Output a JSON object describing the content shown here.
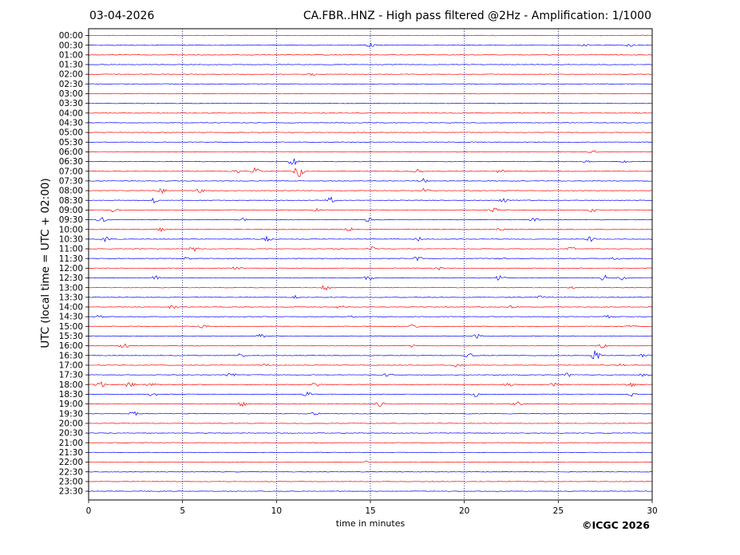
{
  "header": {
    "date": "03-04-2026",
    "title": "CA.FBR..HNZ - High pass filtered @2Hz - Amplification: 1/1000"
  },
  "footer": {
    "copyright": "©ICGC 2026"
  },
  "colors": {
    "odd_trace": "#ff0000",
    "even_trace": "#0000ff",
    "grid": "#00008b"
  },
  "chart_data": {
    "type": "line",
    "title": "CA.FBR..HNZ - High pass filtered @2Hz - Amplification: 1/1000",
    "xlabel": "time in minutes",
    "ylabel": "UTC (local time = UTC + 02:00)",
    "xlim": [
      0,
      30
    ],
    "xticks": [
      0,
      5,
      10,
      15,
      20,
      25,
      30
    ],
    "vertical_grid": [
      5,
      10,
      15,
      20,
      25
    ],
    "grid": "dotted vertical",
    "trace_colors": [
      "red",
      "blue"
    ],
    "rows": [
      {
        "label": "00:00",
        "color": "red",
        "bursts": []
      },
      {
        "label": "00:30",
        "color": "blue",
        "bursts": [
          [
            15,
            0.3
          ],
          [
            26.5,
            0.2
          ],
          [
            28.8,
            0.2
          ]
        ]
      },
      {
        "label": "01:00",
        "color": "red",
        "bursts": []
      },
      {
        "label": "01:30",
        "color": "blue",
        "bursts": []
      },
      {
        "label": "02:00",
        "color": "red",
        "bursts": [
          [
            11.9,
            0.2
          ]
        ]
      },
      {
        "label": "02:30",
        "color": "blue",
        "bursts": []
      },
      {
        "label": "03:00",
        "color": "red",
        "bursts": []
      },
      {
        "label": "03:30",
        "color": "blue",
        "bursts": []
      },
      {
        "label": "04:00",
        "color": "red",
        "bursts": []
      },
      {
        "label": "04:30",
        "color": "blue",
        "bursts": []
      },
      {
        "label": "05:00",
        "color": "red",
        "bursts": []
      },
      {
        "label": "05:30",
        "color": "blue",
        "bursts": []
      },
      {
        "label": "06:00",
        "color": "red",
        "bursts": [
          [
            26.8,
            0.3
          ]
        ]
      },
      {
        "label": "06:30",
        "color": "blue",
        "bursts": [
          [
            10.9,
            0.8
          ],
          [
            26.5,
            0.2
          ],
          [
            28.6,
            0.2
          ]
        ]
      },
      {
        "label": "07:00",
        "color": "red",
        "bursts": [
          [
            7.9,
            0.3
          ],
          [
            8.9,
            0.7
          ],
          [
            11.2,
            1.0
          ],
          [
            17.5,
            0.4
          ],
          [
            21.9,
            0.3
          ]
        ]
      },
      {
        "label": "07:30",
        "color": "blue",
        "bursts": [
          [
            17.8,
            0.4
          ]
        ]
      },
      {
        "label": "08:00",
        "color": "red",
        "bursts": [
          [
            3.9,
            0.4
          ],
          [
            5.9,
            0.3
          ],
          [
            17.9,
            0.4
          ]
        ]
      },
      {
        "label": "08:30",
        "color": "blue",
        "bursts": [
          [
            3.5,
            0.4
          ],
          [
            12.9,
            0.5
          ],
          [
            22.1,
            0.3
          ]
        ]
      },
      {
        "label": "09:00",
        "color": "red",
        "bursts": [
          [
            1.3,
            0.4
          ],
          [
            12.2,
            0.3
          ],
          [
            21.6,
            0.3
          ],
          [
            26.8,
            0.4
          ]
        ]
      },
      {
        "label": "09:30",
        "color": "blue",
        "bursts": [
          [
            0.7,
            0.4
          ],
          [
            8.2,
            0.3
          ],
          [
            14.9,
            0.4
          ],
          [
            23.7,
            0.4
          ]
        ]
      },
      {
        "label": "10:00",
        "color": "red",
        "bursts": [
          [
            3.9,
            0.3
          ],
          [
            13.9,
            0.3
          ],
          [
            21.9,
            0.3
          ]
        ]
      },
      {
        "label": "10:30",
        "color": "blue",
        "bursts": [
          [
            0.9,
            0.4
          ],
          [
            9.5,
            0.4
          ],
          [
            17.6,
            0.3
          ],
          [
            26.7,
            0.4
          ]
        ]
      },
      {
        "label": "11:00",
        "color": "red",
        "bursts": [
          [
            5.6,
            0.4
          ],
          [
            15.1,
            0.3
          ],
          [
            25.7,
            0.3
          ]
        ]
      },
      {
        "label": "11:30",
        "color": "blue",
        "bursts": [
          [
            5.2,
            0.3
          ],
          [
            17.5,
            0.4
          ],
          [
            22,
            0.3
          ],
          [
            28.1,
            0.3
          ]
        ]
      },
      {
        "label": "12:00",
        "color": "red",
        "bursts": [
          [
            7.9,
            0.4
          ],
          [
            18.6,
            0.3
          ]
        ]
      },
      {
        "label": "12:30",
        "color": "blue",
        "bursts": [
          [
            3.6,
            0.3
          ],
          [
            14.9,
            0.4
          ],
          [
            21.9,
            0.5
          ],
          [
            27.4,
            0.6
          ],
          [
            28.4,
            0.3
          ]
        ]
      },
      {
        "label": "13:00",
        "color": "red",
        "bursts": [
          [
            12.6,
            0.4
          ],
          [
            25.6,
            0.3
          ]
        ]
      },
      {
        "label": "13:30",
        "color": "blue",
        "bursts": [
          [
            11,
            0.3
          ],
          [
            24.1,
            0.3
          ]
        ]
      },
      {
        "label": "14:00",
        "color": "red",
        "bursts": [
          [
            4.5,
            0.4
          ],
          [
            13.4,
            0.3
          ],
          [
            22.6,
            0.3
          ]
        ]
      },
      {
        "label": "14:30",
        "color": "blue",
        "bursts": [
          [
            0.6,
            0.3
          ],
          [
            14.1,
            0.3
          ],
          [
            27.6,
            0.3
          ]
        ]
      },
      {
        "label": "15:00",
        "color": "red",
        "bursts": [
          [
            6.1,
            0.3
          ],
          [
            17.3,
            0.3
          ],
          [
            28.9,
            0.3
          ]
        ]
      },
      {
        "label": "15:30",
        "color": "blue",
        "bursts": [
          [
            9.2,
            0.4
          ],
          [
            20.7,
            0.3
          ]
        ]
      },
      {
        "label": "16:00",
        "color": "red",
        "bursts": [
          [
            1.9,
            0.4
          ],
          [
            17.1,
            0.3
          ],
          [
            27.3,
            0.4
          ]
        ]
      },
      {
        "label": "16:30",
        "color": "blue",
        "bursts": [
          [
            8.1,
            0.3
          ],
          [
            20.2,
            0.4
          ],
          [
            27,
            0.9
          ],
          [
            29.6,
            0.4
          ]
        ]
      },
      {
        "label": "17:00",
        "color": "red",
        "bursts": [
          [
            9.4,
            0.3
          ],
          [
            19.6,
            0.3
          ],
          [
            28.4,
            0.3
          ]
        ]
      },
      {
        "label": "17:30",
        "color": "blue",
        "bursts": [
          [
            7.6,
            0.4
          ],
          [
            15.9,
            0.3
          ],
          [
            25.5,
            0.3
          ],
          [
            29.6,
            0.3
          ]
        ]
      },
      {
        "label": "18:00",
        "color": "red",
        "bursts": [
          [
            0.6,
            0.5
          ],
          [
            2.2,
            0.6
          ],
          [
            3.3,
            0.4
          ],
          [
            12.1,
            0.4
          ],
          [
            22.4,
            0.4
          ],
          [
            24.8,
            0.3
          ],
          [
            28.9,
            0.3
          ]
        ]
      },
      {
        "label": "18:30",
        "color": "blue",
        "bursts": [
          [
            3.4,
            0.4
          ],
          [
            11.6,
            0.4
          ],
          [
            20.6,
            0.4
          ],
          [
            28.9,
            0.3
          ]
        ]
      },
      {
        "label": "19:00",
        "color": "red",
        "bursts": [
          [
            8.2,
            0.4
          ],
          [
            15.5,
            0.4
          ],
          [
            22.8,
            0.4
          ]
        ]
      },
      {
        "label": "19:30",
        "color": "blue",
        "bursts": [
          [
            2.4,
            0.5
          ],
          [
            12.1,
            0.4
          ]
        ]
      },
      {
        "label": "20:00",
        "color": "red",
        "bursts": []
      },
      {
        "label": "20:30",
        "color": "blue",
        "bursts": []
      },
      {
        "label": "21:00",
        "color": "red",
        "bursts": []
      },
      {
        "label": "21:30",
        "color": "blue",
        "bursts": []
      },
      {
        "label": "22:00",
        "color": "red",
        "bursts": [
          [
            14.8,
            0.2
          ]
        ]
      },
      {
        "label": "22:30",
        "color": "blue",
        "bursts": []
      },
      {
        "label": "23:00",
        "color": "red",
        "bursts": []
      },
      {
        "label": "23:30",
        "color": "blue",
        "bursts": []
      }
    ]
  }
}
